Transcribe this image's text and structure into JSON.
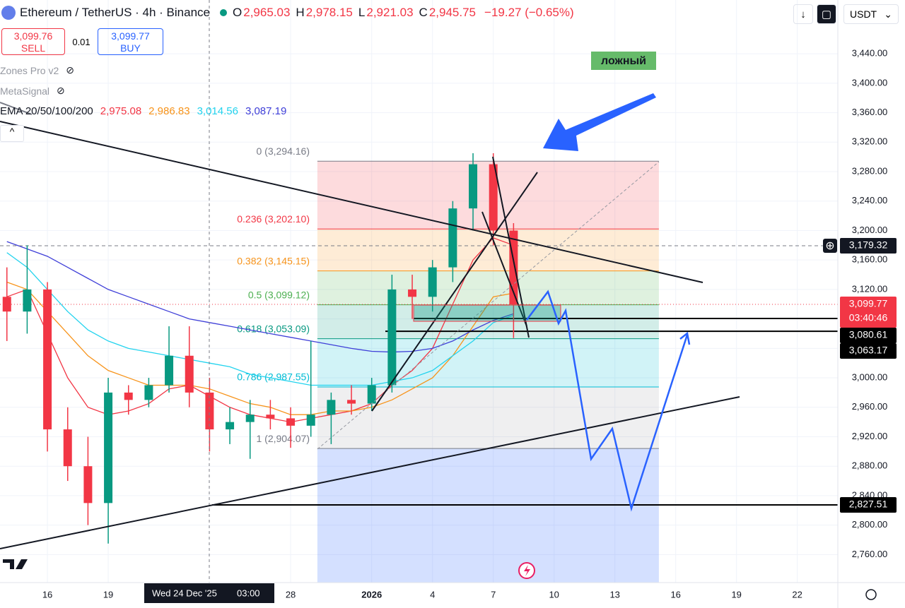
{
  "header": {
    "title": "Ethereum / TetherUS · 4h · Binance",
    "ohlc": [
      {
        "key": "O",
        "value": "2,965.03"
      },
      {
        "key": "H",
        "value": "2,978.15"
      },
      {
        "key": "L",
        "value": "2,921.03"
      },
      {
        "key": "C",
        "value": "2,945.75"
      }
    ],
    "change": "−19.27 (−0.65%)",
    "currency": "USDT"
  },
  "trade": {
    "sell_price": "3,099.76",
    "sell_label": "SELL",
    "qty": "0.01",
    "buy_price": "3,099.77",
    "buy_label": "BUY"
  },
  "indicators": [
    "Zones Pro v2",
    "MetaSignal"
  ],
  "ema": {
    "name": "EMA 20/50/100/200",
    "values": [
      "2,975.08",
      "2,986.83",
      "3,014.56",
      "3,087.19"
    ]
  },
  "annotation": "ложный",
  "crosshair_date": "Wed 24 Dec '25",
  "crosshair_time": "03:00",
  "countdown": "03:40:46",
  "chart_data": {
    "type": "candlestick",
    "x": [
      14,
      15,
      16,
      17,
      18,
      19,
      20,
      21,
      22,
      23,
      24,
      25,
      26,
      27,
      28,
      29,
      30,
      31,
      32,
      33,
      34,
      35,
      36,
      37,
      38,
      39
    ],
    "open": [
      3110,
      3090,
      3120,
      2930,
      2880,
      2830,
      2980,
      2970,
      2990,
      3030,
      2980,
      2930,
      2940,
      2950,
      2945,
      2935,
      2950,
      2970,
      2965,
      2990,
      3120,
      3110,
      3150,
      3230,
      3290,
      3200
    ],
    "high": [
      3150,
      3180,
      3130,
      2960,
      2920,
      3000,
      2990,
      3000,
      3070,
      3070,
      3000,
      2960,
      2970,
      2970,
      2960,
      3050,
      2980,
      2990,
      3000,
      3140,
      3140,
      3160,
      3240,
      3305,
      3305,
      3210
    ],
    "low": [
      3050,
      3060,
      2900,
      2860,
      2800,
      2775,
      2950,
      2960,
      2980,
      2960,
      2900,
      2910,
      2890,
      2930,
      2905,
      2920,
      2910,
      2950,
      2955,
      2980,
      3080,
      3090,
      3130,
      3200,
      3180,
      3054
    ],
    "close": [
      3090,
      3120,
      2930,
      2880,
      2830,
      2980,
      2970,
      2990,
      3030,
      2980,
      2930,
      2940,
      2950,
      2945,
      2935,
      2950,
      2970,
      2965,
      2990,
      3120,
      3110,
      3150,
      3230,
      3290,
      3200,
      3099.77
    ],
    "up_color": "#089981",
    "down_color": "#f23645",
    "series": [
      {
        "color": "#f23645",
        "values": [
          3110,
          3120,
          3060,
          3000,
          2960,
          2950,
          2955,
          2965,
          2985,
          2990,
          2975,
          2960,
          2950,
          2945,
          2940,
          2945,
          2950,
          2955,
          2965,
          2990,
          3010,
          3040,
          3100,
          3160,
          3190,
          3180
        ]
      },
      {
        "color": "#f7931a",
        "values": [
          3130,
          3120,
          3090,
          3060,
          3030,
          3010,
          3000,
          2990,
          2990,
          2990,
          2985,
          2975,
          2965,
          2960,
          2950,
          2950,
          2955,
          2955,
          2960,
          2970,
          2985,
          3000,
          3030,
          3070,
          3110,
          3115
        ]
      },
      {
        "color": "#22d3ee",
        "values": [
          3170,
          3150,
          3120,
          3090,
          3065,
          3050,
          3040,
          3035,
          3030,
          3025,
          3020,
          3015,
          3005,
          3000,
          2995,
          2990,
          2990,
          2990,
          2990,
          2995,
          3000,
          3010,
          3030,
          3050,
          3075,
          3085
        ]
      },
      {
        "color": "#3f3fd8",
        "values": [
          3185,
          3175,
          3165,
          3150,
          3135,
          3120,
          3110,
          3100,
          3090,
          3080,
          3075,
          3070,
          3065,
          3060,
          3055,
          3050,
          3045,
          3040,
          3036,
          3035,
          3036,
          3040,
          3050,
          3065,
          3078,
          3087
        ]
      }
    ],
    "xlim": [
      13.66,
      55
    ],
    "ylim": [
      2722,
      3513
    ],
    "grid": true,
    "xticks": [
      {
        "value": 16,
        "label": "16"
      },
      {
        "value": 19,
        "label": "19"
      },
      {
        "value": 28,
        "label": "28"
      },
      {
        "value": 32,
        "label": "2026"
      },
      {
        "value": 35,
        "label": "4"
      },
      {
        "value": 38,
        "label": "7"
      },
      {
        "value": 41,
        "label": "10"
      },
      {
        "value": 44,
        "label": "13"
      },
      {
        "value": 47,
        "label": "16"
      },
      {
        "value": 50,
        "label": "19"
      },
      {
        "value": 53,
        "label": "22"
      }
    ],
    "yticks": [
      {
        "value": 2760,
        "label": "2,760.00"
      },
      {
        "value": 2800,
        "label": "2,800.00"
      },
      {
        "value": 2840,
        "label": "2,840.00"
      },
      {
        "value": 2880,
        "label": "2,880.00"
      },
      {
        "value": 2920,
        "label": "2,920.00"
      },
      {
        "value": 2960,
        "label": "2,960.00"
      },
      {
        "value": 3000,
        "label": "3,000.00"
      },
      {
        "value": 3040,
        "label": "3,040.00"
      },
      {
        "value": 3080,
        "label": "3,080.00"
      },
      {
        "value": 3120,
        "label": "3,120.00"
      },
      {
        "value": 3160,
        "label": "3,160.00"
      },
      {
        "value": 3200,
        "label": "3,200.00"
      },
      {
        "value": 3240,
        "label": "3,240.00"
      },
      {
        "value": 3280,
        "label": "3,280.00"
      },
      {
        "value": 3320,
        "label": "3,320.00"
      },
      {
        "value": 3360,
        "label": "3,360.00"
      },
      {
        "value": 3400,
        "label": "3,400.00"
      },
      {
        "value": 3440,
        "label": "3,440.00"
      }
    ],
    "fib_range": [
      29.32,
      46.17
    ],
    "fib_levels": [
      {
        "value": 3294.16,
        "label": "0 (3,294.16)",
        "color": "#787b86"
      },
      {
        "value": 3202.1,
        "label": "0.236 (3,202.10)",
        "color": "#f23645"
      },
      {
        "value": 3145.15,
        "label": "0.382 (3,145.15)",
        "color": "#f7931a"
      },
      {
        "value": 3099.12,
        "label": "0.5 (3,099.12)",
        "color": "#4caf50"
      },
      {
        "value": 3053.09,
        "label": "0.618 (3,053.09)",
        "color": "#089981"
      },
      {
        "value": 2987.55,
        "label": "0.786 (2,987.55)",
        "color": "#00bcd4"
      },
      {
        "value": 2904.07,
        "label": "1 (2,904.07)",
        "color": "#787b86"
      }
    ],
    "price_labels": [
      {
        "value": 3179.32,
        "label": "3,179.32",
        "color": "#131722",
        "line": "dashed"
      },
      {
        "value": 3099.77,
        "label": "3,099.77",
        "color": "#f23645",
        "line": "dotted"
      },
      {
        "value": 3080.61,
        "label": "3,080.61",
        "color": "#000000",
        "line": "solid"
      },
      {
        "value": 3063.17,
        "label": "3,063.17",
        "color": "#000000",
        "line": "solid"
      },
      {
        "value": 2827.51,
        "label": "2,827.51",
        "color": "#000000",
        "line": "solid"
      }
    ]
  }
}
